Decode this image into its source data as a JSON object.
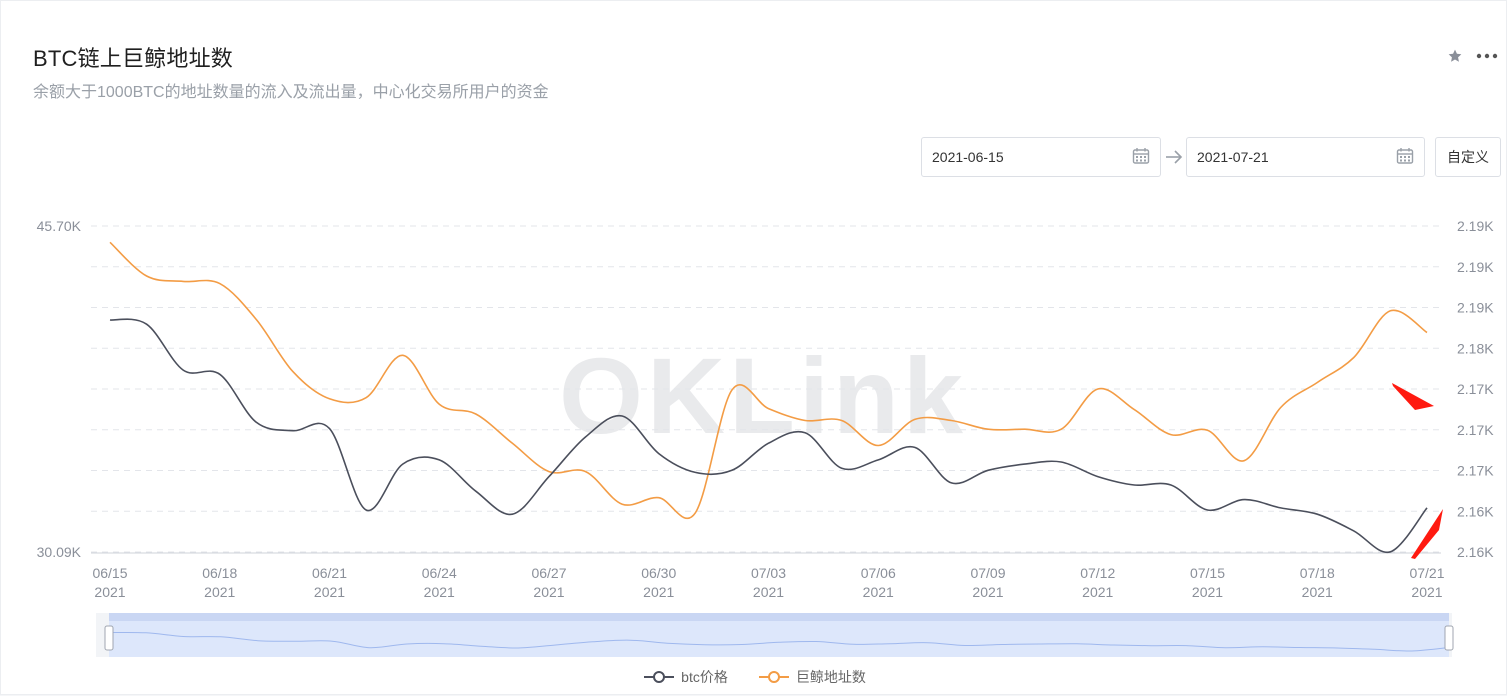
{
  "header": {
    "title": "BTC链上巨鲸地址数",
    "subtitle": "余额大于1000BTC的地址数量的流入及流出量，中心化交易所用户的资金"
  },
  "tools": {
    "star_icon": "star-icon",
    "more_icon": "more-horizontal-icon"
  },
  "range": {
    "start": "2021-06-15",
    "end": "2021-07-21",
    "custom_label": "自定义",
    "calendar_icon": "calendar-icon",
    "arrow_icon": "arrow-right-icon"
  },
  "watermark": "OKLink",
  "colors": {
    "btc": "#4b4f5c",
    "whale": "#f39c45",
    "grid": "#e3e5ea",
    "axis_text": "#8a8f99",
    "zoom_fill": "#dde7fb",
    "zoom_line": "#9fb8ee",
    "annotation": "#ff1a10"
  },
  "chart_data": {
    "type": "line",
    "x_ticks": [
      {
        "day": 0,
        "label": "06/15",
        "year": "2021"
      },
      {
        "day": 3,
        "label": "06/18",
        "year": "2021"
      },
      {
        "day": 6,
        "label": "06/21",
        "year": "2021"
      },
      {
        "day": 9,
        "label": "06/24",
        "year": "2021"
      },
      {
        "day": 12,
        "label": "06/27",
        "year": "2021"
      },
      {
        "day": 15,
        "label": "06/30",
        "year": "2021"
      },
      {
        "day": 18,
        "label": "07/03",
        "year": "2021"
      },
      {
        "day": 21,
        "label": "07/06",
        "year": "2021"
      },
      {
        "day": 24,
        "label": "07/09",
        "year": "2021"
      },
      {
        "day": 27,
        "label": "07/12",
        "year": "2021"
      },
      {
        "day": 30,
        "label": "07/15",
        "year": "2021"
      },
      {
        "day": 33,
        "label": "07/18",
        "year": "2021"
      },
      {
        "day": 36,
        "label": "07/21",
        "year": "2021"
      }
    ],
    "x_range": [
      0,
      36
    ],
    "y_left": {
      "min": 30090,
      "max": 45700,
      "labels": [
        "45.70K",
        "30.09K"
      ]
    },
    "y_right": {
      "min": 2160,
      "max": 2190,
      "labels": [
        "2.19K",
        "2.19K",
        "2.19K",
        "2.18K",
        "2.17K",
        "2.17K",
        "2.17K",
        "2.16K",
        "2.16K"
      ]
    },
    "grid": true,
    "legend_position": "bottom-center",
    "series": [
      {
        "name": "btc价格",
        "axis": "left",
        "points": [
          [
            0,
            41200
          ],
          [
            1,
            41000
          ],
          [
            2,
            38800
          ],
          [
            3,
            38600
          ],
          [
            4,
            36300
          ],
          [
            5,
            35900
          ],
          [
            6,
            36000
          ],
          [
            7,
            32100
          ],
          [
            8,
            34300
          ],
          [
            9,
            34500
          ],
          [
            10,
            33000
          ],
          [
            11,
            31900
          ],
          [
            12,
            33700
          ],
          [
            13,
            35600
          ],
          [
            14,
            36600
          ],
          [
            15,
            34800
          ],
          [
            16,
            33900
          ],
          [
            17,
            34000
          ],
          [
            18,
            35300
          ],
          [
            19,
            35800
          ],
          [
            20,
            34100
          ],
          [
            21,
            34500
          ],
          [
            22,
            35100
          ],
          [
            23,
            33400
          ],
          [
            24,
            34000
          ],
          [
            25,
            34300
          ],
          [
            26,
            34400
          ],
          [
            27,
            33700
          ],
          [
            28,
            33300
          ],
          [
            29,
            33300
          ],
          [
            30,
            32100
          ],
          [
            31,
            32600
          ],
          [
            32,
            32200
          ],
          [
            33,
            31900
          ],
          [
            34,
            31100
          ],
          [
            35,
            30100
          ],
          [
            36,
            32200
          ]
        ]
      },
      {
        "name": "巨鲸地址数",
        "axis": "right",
        "points": [
          [
            0,
            2188.5
          ],
          [
            1,
            2185.4
          ],
          [
            2,
            2184.9
          ],
          [
            3,
            2184.7
          ],
          [
            4,
            2181.4
          ],
          [
            5,
            2176.6
          ],
          [
            6,
            2174.1
          ],
          [
            7,
            2174.2
          ],
          [
            8,
            2178.1
          ],
          [
            9,
            2173.6
          ],
          [
            10,
            2172.7
          ],
          [
            11,
            2170.0
          ],
          [
            12,
            2167.4
          ],
          [
            13,
            2167.4
          ],
          [
            14,
            2164.4
          ],
          [
            15,
            2165.0
          ],
          [
            16,
            2163.6
          ],
          [
            17,
            2174.9
          ],
          [
            18,
            2173.2
          ],
          [
            19,
            2172.1
          ],
          [
            20,
            2172.1
          ],
          [
            21,
            2169.8
          ],
          [
            22,
            2172.2
          ],
          [
            23,
            2172.1
          ],
          [
            24,
            2171.3
          ],
          [
            25,
            2171.3
          ],
          [
            26,
            2171.3
          ],
          [
            27,
            2175.0
          ],
          [
            28,
            2173.1
          ],
          [
            29,
            2170.8
          ],
          [
            30,
            2171.2
          ],
          [
            31,
            2168.4
          ],
          [
            32,
            2173.3
          ],
          [
            33,
            2175.6
          ],
          [
            34,
            2177.9
          ],
          [
            35,
            2182.2
          ],
          [
            36,
            2180.2
          ]
        ]
      }
    ]
  }
}
